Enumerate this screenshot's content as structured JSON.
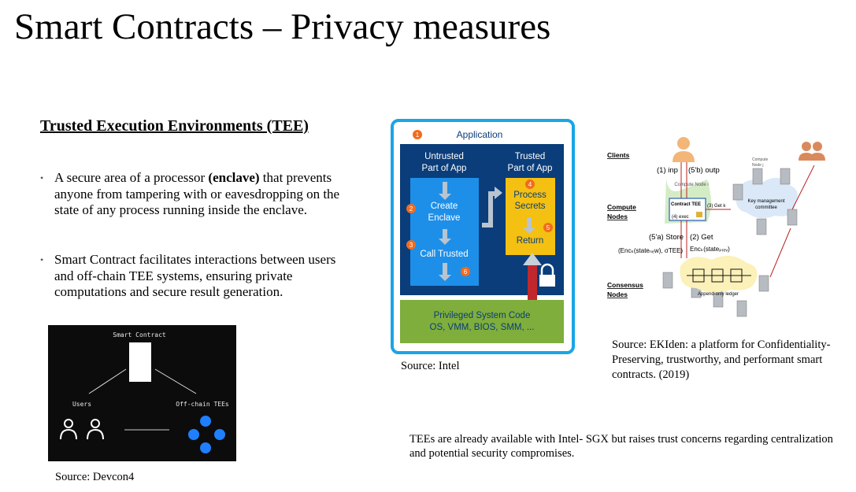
{
  "title": "Smart Contracts – Privacy measures",
  "heading": "Trusted Execution Environments (TEE)",
  "bullets": [
    {
      "pre": "A secure area of a processor ",
      "bold": "(enclave)",
      "post": " that prevents anyone from tampering with or eavesdropping on the state of any process running inside the enclave."
    },
    {
      "pre": "Smart Contract facilitates interactions between users and off-chain TEE systems, ensuring private computations and secure result generation.",
      "bold": "",
      "post": ""
    }
  ],
  "devcon": {
    "smart_contract": "Smart Contract",
    "users": "Users",
    "tees": "Off-chain TEEs",
    "source": "Source: Devcon4"
  },
  "intel": {
    "application": "Application",
    "untrusted": "Untrusted",
    "part_of_app_1": "Part of App",
    "trusted": "Trusted",
    "part_of_app_2": "Part of App",
    "create": "Create",
    "enclave": "Enclave",
    "call_trusted": "Call Trusted",
    "process": "Process",
    "secrets": "Secrets",
    "return": "Return",
    "privileged": "Privileged System Code",
    "os_line": "OS, VMM, BIOS, SMM, ...",
    "n1": "1",
    "n2": "2",
    "n3": "3",
    "n4": "4",
    "n5": "5",
    "n6": "6",
    "source": "Source: Intel"
  },
  "ekiden": {
    "clients": "Clients",
    "compute_nodes_1": "Compute",
    "compute_nodes_2": "Nodes",
    "consensus_1": "Consensus",
    "consensus_2": "Nodes",
    "inp": "(1) inp",
    "outp": "(5'b) outp",
    "compute_node_i": "Compute Node i",
    "compute_node_j_1": "Compute",
    "compute_node_j_2": "Node j",
    "contract_tee": "Contract TEE",
    "exec": "(4) exec",
    "getk": "(3) Get k",
    "key_mgmt_1": "Key management",
    "key_mgmt_2": "committee",
    "store": "(5'a) Store",
    "get": "(2) Get",
    "enc_new": "(Encₖ(stateₙₑw), σTEE)",
    "enc_prev": "Encₖ(stateₚᵣₑᵥ)",
    "ledger": "Append-only ledger",
    "source": "Source: EKIden: a platform for Confidentiality-Preserving, trustworthy, and performant smart contracts. (2019)"
  },
  "note": "TEEs are already available with Intel- SGX but raises trust concerns regarding centralization and potential security compromises.",
  "colors": {
    "intel_frame": "#1aa5e6",
    "intel_dark": "#0a3d7a",
    "intel_blue": "#1d8fe8",
    "intel_yellow": "#f4c011",
    "intel_green": "#7fae3c",
    "badge_orange": "#f26b1d",
    "tee_blue": "#1f7fff"
  }
}
